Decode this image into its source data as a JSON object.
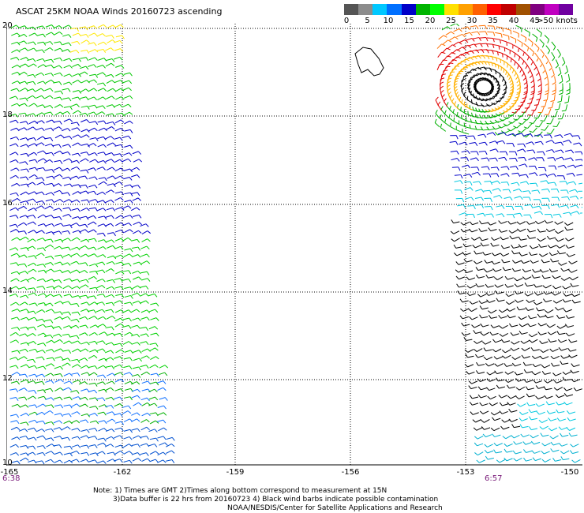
{
  "title": "ASCAT 25KM NOAA Winds 20160723 ascending",
  "legend": {
    "labels": [
      "0",
      "5",
      "10",
      "15",
      "20",
      "25",
      "30",
      "35",
      "40",
      "45",
      ">50 knots"
    ],
    "colors": [
      "#555555",
      "#8c8c8c",
      "#00c8ff",
      "#0070ff",
      "#0000c8",
      "#00b400",
      "#00ff00",
      "#ffe000",
      "#ffa000",
      "#ff6000",
      "#ff0000",
      "#c00000",
      "#a05000",
      "#800080",
      "#c000c0",
      "#7000a0"
    ]
  },
  "axes": {
    "y_labels": [
      "20",
      "18",
      "16",
      "14",
      "12",
      "10"
    ],
    "x_labels": [
      "-165",
      "-162",
      "-159",
      "-156",
      "-153",
      "-150"
    ]
  },
  "times": {
    "left": "6:38",
    "right": "6:57"
  },
  "notes": {
    "line1": "Note: 1) Times are GMT 2)Times along bottom correspond to measurement at 15N",
    "line2": "3)Data buffer is 22 hrs from 20160723 4) Black wind barbs indicate possible contamination",
    "line3": "NOAA/NESDIS/Center for Satellite Applications and Research"
  }
}
